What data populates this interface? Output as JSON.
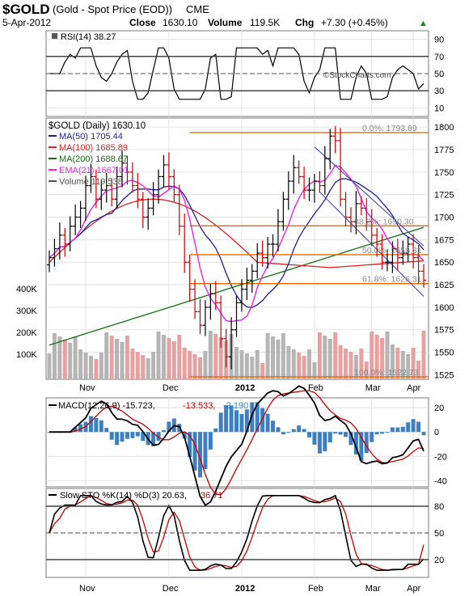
{
  "header": {
    "symbol": "$GOLD",
    "name": "(Gold - Spot Price (EOD))",
    "exchange": "CME",
    "date": "5-Apr-2012",
    "close_label": "Close",
    "close": "1630.10",
    "volume_label": "Volume",
    "volume": "119.5K",
    "chg_label": "Chg",
    "chg": "+7.30 (+0.45%)",
    "chg_arrow": "▲",
    "watermark": "©StockCharts.com"
  },
  "colors": {
    "up": "#000000",
    "down": "#cc0000",
    "ma50": "#1f1f9f",
    "ma100": "#e02020",
    "ma200": "#137013",
    "ema21": "#ee22ee",
    "fib": "#e06a00",
    "channel": "#3a3aa8",
    "macd_hist": "#3b7fc4",
    "vol_up": "#b5b5b5",
    "vol_down": "#e8a0a0"
  },
  "rsi_panel": {
    "legend": "RSI(14) 38.27",
    "ticks": [
      "90",
      "70",
      "50",
      "30",
      "10"
    ]
  },
  "price_panel": {
    "legend_title": "$GOLD (Daily) 1630.10",
    "legend_items": [
      {
        "text": "MA(50) 1705.44",
        "color": "#1f1f9f"
      },
      {
        "text": "MA(100) 1685.89",
        "color": "#e02020"
      },
      {
        "text": "MA(200) 1688.67",
        "color": "#137013"
      },
      {
        "text": "EMA(21) 1667.01",
        "color": "#ee22ee"
      },
      {
        "text": "Volume 119,538",
        "color": "#555555"
      }
    ],
    "ticks": [
      "1800",
      "1775",
      "1750",
      "1725",
      "1700",
      "1675",
      "1650",
      "1625",
      "1600",
      "1575",
      "1550",
      "1525"
    ],
    "volume_ticks": [
      "400K",
      "300K",
      "200K",
      "100K"
    ],
    "fib_labels": [
      "0.0%: 1793.89",
      "38.2%: 1690.30",
      "50.0%: 1658.31",
      "61.8%: 1626.31",
      "100.0%: 1522.73"
    ]
  },
  "macd_panel": {
    "legend_a": "MACD(12,26,9) -15.723,",
    "legend_b": "-13.533,",
    "legend_c": "-2.190",
    "ticks": [
      "20",
      "0",
      "-20",
      "-40"
    ]
  },
  "sto_panel": {
    "legend_a": "Slow STO %K(14) %D(3) 20.63,",
    "legend_b": "36.71",
    "ticks": [
      "80",
      "50",
      "20"
    ]
  },
  "x_axis": {
    "months": [
      "Nov",
      "Dec",
      "2012",
      "Feb",
      "Mar",
      "Apr"
    ]
  },
  "chart_data": {
    "type": "line",
    "title": "$GOLD (Gold - Spot Price (EOD)) CME",
    "x_range": [
      "Oct 2011",
      "5-Apr-2012"
    ],
    "price_axis_range": [
      1520,
      1810
    ],
    "rsi_axis_range": [
      0,
      100
    ],
    "macd_axis_range": [
      -45,
      28
    ],
    "sto_axis_range": [
      0,
      100
    ],
    "grid": true,
    "close_series_approx": [
      1655,
      1665,
      1680,
      1670,
      1690,
      1700,
      1710,
      1735,
      1745,
      1720,
      1730,
      1735,
      1720,
      1745,
      1760,
      1750,
      1735,
      1720,
      1700,
      1710,
      1725,
      1745,
      1758,
      1745,
      1725,
      1690,
      1650,
      1620,
      1595,
      1580,
      1600,
      1615,
      1605,
      1565,
      1545,
      1575,
      1605,
      1620,
      1630,
      1640,
      1660,
      1655,
      1670,
      1670,
      1695,
      1720,
      1740,
      1755,
      1745,
      1730,
      1730,
      1740,
      1735,
      1765,
      1790,
      1785,
      1720,
      1700,
      1695,
      1715,
      1710,
      1695,
      1680,
      1670,
      1650,
      1650,
      1665,
      1655,
      1660,
      1670,
      1655,
      1640,
      1630
    ],
    "moving_averages": [
      {
        "name": "MA(50)",
        "last": 1705.44
      },
      {
        "name": "MA(100)",
        "last": 1685.89
      },
      {
        "name": "MA(200)",
        "last": 1688.67
      },
      {
        "name": "EMA(21)",
        "last": 1667.01
      }
    ],
    "fibonacci_levels": [
      {
        "label": "0.0%",
        "value": 1793.89
      },
      {
        "label": "38.2%",
        "value": 1690.3
      },
      {
        "label": "50.0%",
        "value": 1658.31
      },
      {
        "label": "61.8%",
        "value": 1626.31
      },
      {
        "label": "100.0%",
        "value": 1522.73
      }
    ],
    "last_volume": 119538,
    "rsi_last": 38.27,
    "macd_last": {
      "macd": -15.723,
      "signal": -13.533,
      "histogram": -2.19
    },
    "stochastic_last": {
      "k": 20.63,
      "d": 36.71
    }
  }
}
